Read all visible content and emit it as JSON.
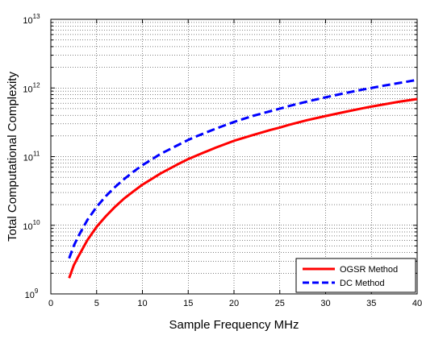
{
  "chart_data": {
    "type": "line",
    "title": "",
    "xlabel": "Sample Frequency MHz",
    "ylabel": "Total Computational Complexity",
    "xlim": [
      0,
      40
    ],
    "ylim": [
      1000000000,
      10000000000000
    ],
    "yscale": "log",
    "grid": true,
    "legend_position": "bottom-right",
    "x_ticks": [
      0,
      5,
      10,
      15,
      20,
      25,
      30,
      35,
      40
    ],
    "y_ticks": [
      {
        "base": "10",
        "exp": "9"
      },
      {
        "base": "10",
        "exp": "10"
      },
      {
        "base": "10",
        "exp": "11"
      },
      {
        "base": "10",
        "exp": "12"
      },
      {
        "base": "10",
        "exp": "13"
      }
    ],
    "x": [
      2,
      2.5,
      3,
      4,
      5,
      6,
      7,
      8,
      9,
      10,
      12,
      14,
      15,
      16,
      18,
      20,
      22,
      24,
      25,
      26,
      28,
      30,
      32,
      34,
      35,
      36,
      38,
      40
    ],
    "series": [
      {
        "name": "OGSR Method",
        "color": "#ff0000",
        "style": "solid",
        "values": [
          1700000000.0,
          2600000000.0,
          3500000000.0,
          6100000000.0,
          9500000000.0,
          13500000000.0,
          18500000000.0,
          24500000000.0,
          31000000000.0,
          39000000000.0,
          57000000000.0,
          79000000000.0,
          92000000000.0,
          105000000000.0,
          135000000000.0,
          170000000000.0,
          205000000000.0,
          245000000000.0,
          265000000000.0,
          290000000000.0,
          340000000000.0,
          390000000000.0,
          445000000000.0,
          505000000000.0,
          535000000000.0,
          565000000000.0,
          630000000000.0,
          690000000000.0
        ]
      },
      {
        "name": "DC Method",
        "color": "#0000ff",
        "style": "dashed",
        "values": [
          3300000000.0,
          5000000000.0,
          6900000000.0,
          12000000000.0,
          18500000000.0,
          26500000000.0,
          36000000000.0,
          47000000000.0,
          60000000000.0,
          75000000000.0,
          110000000000.0,
          150000000000.0,
          175000000000.0,
          200000000000.0,
          255000000000.0,
          320000000000.0,
          390000000000.0,
          460000000000.0,
          500000000000.0,
          545000000000.0,
          635000000000.0,
          730000000000.0,
          835000000000.0,
          945000000000.0,
          1000000000000.0,
          1060000000000.0,
          1180000000000.0,
          1310000000000.0
        ]
      }
    ]
  }
}
